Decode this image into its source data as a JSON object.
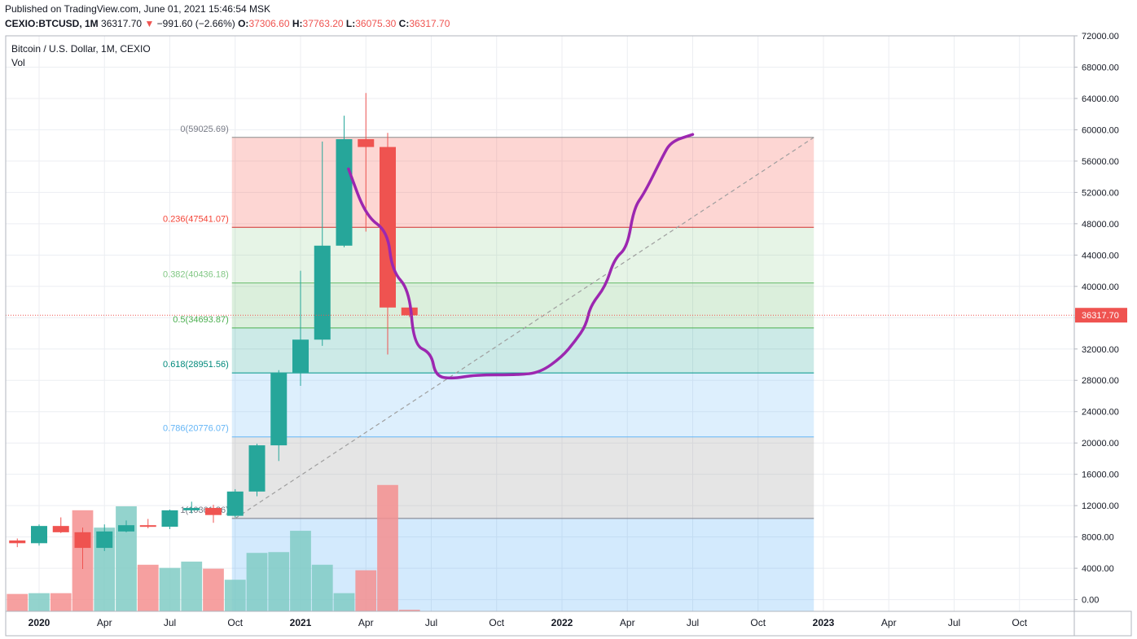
{
  "header": {
    "published": "Published on TradingView.com, June 01, 2021 15:46:54 MSK",
    "symbol": "CEXIO:BTCUSD, 1M",
    "last": "36317.70",
    "change_arrow": "▼",
    "change": "−991.60 (−2.66%)",
    "o_label": "O:",
    "o_value": "37306.60",
    "h_label": "H:",
    "h_value": "37763.20",
    "l_label": "L:",
    "l_value": "36075.30",
    "c_label": "C:",
    "c_value": "36317.70"
  },
  "legend": {
    "title": "Bitcoin / U.S. Dollar, 1M, CEXIO",
    "vol": "Vol"
  },
  "colors": {
    "up": "#26a69a",
    "down": "#ef5350",
    "vol_up": "#80cbc4",
    "vol_down": "#f48f8f",
    "projection": "#9c27b0",
    "price_line": "#ef5350"
  },
  "chart_data": {
    "type": "candlestick",
    "price_axis": {
      "ylim": [
        -1500,
        72000
      ],
      "ticks": [
        "72000.00",
        "68000.00",
        "64000.00",
        "60000.00",
        "56000.00",
        "52000.00",
        "48000.00",
        "44000.00",
        "40000.00",
        "36000.00",
        "32000.00",
        "28000.00",
        "24000.00",
        "20000.00",
        "16000.00",
        "12000.00",
        "8000.00",
        "4000.00",
        "0.00"
      ],
      "last_price_label": "36317.70",
      "last_price": 36317.7
    },
    "time_axis": {
      "labels": [
        {
          "month_index": 0,
          "label": "2020",
          "bold": true
        },
        {
          "month_index": 3,
          "label": "Apr"
        },
        {
          "month_index": 6,
          "label": "Jul"
        },
        {
          "month_index": 9,
          "label": "Oct"
        },
        {
          "month_index": 12,
          "label": "2021",
          "bold": true
        },
        {
          "month_index": 15,
          "label": "Apr"
        },
        {
          "month_index": 18,
          "label": "Jul"
        },
        {
          "month_index": 21,
          "label": "Oct"
        },
        {
          "month_index": 24,
          "label": "2022",
          "bold": true
        },
        {
          "month_index": 27,
          "label": "Apr"
        },
        {
          "month_index": 30,
          "label": "Jul"
        },
        {
          "month_index": 33,
          "label": "Oct"
        },
        {
          "month_index": 36,
          "label": "2023",
          "bold": true
        },
        {
          "month_index": 39,
          "label": "Apr"
        },
        {
          "month_index": 42,
          "label": "Jul"
        },
        {
          "month_index": 45,
          "label": "Oct"
        }
      ]
    },
    "candles": [
      {
        "month_index": -1,
        "o": 7550,
        "h": 7800,
        "l": 6700,
        "c": 7200,
        "vol": 2200
      },
      {
        "month_index": 0,
        "o": 7200,
        "h": 9600,
        "l": 6900,
        "c": 9400,
        "vol": 2300
      },
      {
        "month_index": 1,
        "o": 9400,
        "h": 10500,
        "l": 8500,
        "c": 8600,
        "vol": 2300
      },
      {
        "month_index": 2,
        "o": 8600,
        "h": 9200,
        "l": 3900,
        "c": 6600,
        "vol": 12800
      },
      {
        "month_index": 3,
        "o": 6600,
        "h": 9600,
        "l": 6200,
        "c": 8700,
        "vol": 10600
      },
      {
        "month_index": 4,
        "o": 8700,
        "h": 10100,
        "l": 8600,
        "c": 9500,
        "vol": 13300
      },
      {
        "month_index": 5,
        "o": 9500,
        "h": 10300,
        "l": 9100,
        "c": 9300,
        "vol": 5900
      },
      {
        "month_index": 6,
        "o": 9300,
        "h": 11500,
        "l": 9000,
        "c": 11400,
        "vol": 5500
      },
      {
        "month_index": 7,
        "o": 11400,
        "h": 12500,
        "l": 11000,
        "c": 11700,
        "vol": 6300
      },
      {
        "month_index": 8,
        "o": 11700,
        "h": 12100,
        "l": 9800,
        "c": 10800,
        "vol": 5400
      },
      {
        "month_index": 9,
        "o": 10700,
        "h": 14100,
        "l": 10500,
        "c": 13800,
        "vol": 4000
      },
      {
        "month_index": 10,
        "o": 13800,
        "h": 19900,
        "l": 13200,
        "c": 19700,
        "vol": 7400
      },
      {
        "month_index": 11,
        "o": 19700,
        "h": 29300,
        "l": 17700,
        "c": 29000,
        "vol": 7500
      },
      {
        "month_index": 12,
        "o": 29000,
        "h": 42000,
        "l": 27300,
        "c": 33200,
        "vol": 10200
      },
      {
        "month_index": 13,
        "o": 33200,
        "h": 58500,
        "l": 32400,
        "c": 45200,
        "vol": 5900
      },
      {
        "month_index": 14,
        "o": 45200,
        "h": 61800,
        "l": 45000,
        "c": 58800,
        "vol": 2300
      },
      {
        "month_index": 15,
        "o": 58800,
        "h": 64700,
        "l": 47000,
        "c": 57800,
        "vol": 5200
      },
      {
        "month_index": 16,
        "o": 57800,
        "h": 59600,
        "l": 31300,
        "c": 37300,
        "vol": 16000
      },
      {
        "month_index": 17,
        "o": 37300,
        "h": 37800,
        "l": 36100,
        "c": 36300,
        "vol": 200
      }
    ],
    "fibonacci": {
      "start_month": 9,
      "end_month": 35,
      "levels": [
        {
          "ratio": 0,
          "label": "0(59025.69)",
          "price": 59025.69,
          "line": "#8c8c8c",
          "fill": "rgba(244,67,54,0.22)",
          "text": "#787b86"
        },
        {
          "ratio": 0.236,
          "label": "0.236(47541.07)",
          "price": 47541.07,
          "line": "#d32f2f",
          "fill": "rgba(129,199,132,0.2)",
          "text": "#f44336"
        },
        {
          "ratio": 0.382,
          "label": "0.382(40436.18)",
          "price": 40436.18,
          "line": "#66bb6a",
          "fill": "rgba(76,175,80,0.2)",
          "text": "#81c784"
        },
        {
          "ratio": 0.5,
          "label": "0.5(34693.87)",
          "price": 34693.87,
          "line": "#4caf50",
          "fill": "rgba(0,150,136,0.2)",
          "text": "#4caf50"
        },
        {
          "ratio": 0.618,
          "label": "0.618(28951.56)",
          "price": 28951.56,
          "line": "#009688",
          "fill": "rgba(100,181,246,0.22)",
          "text": "#00897b"
        },
        {
          "ratio": 0.786,
          "label": "0.786(20776.07)",
          "price": 20776.07,
          "line": "#64b5f6",
          "fill": "rgba(150,150,150,0.25)",
          "text": "#64b5f6"
        },
        {
          "ratio": 1,
          "label": "1(10361.36)",
          "price": 10361.36,
          "line": "#787b86",
          "fill": "rgba(33,150,243,0.2)",
          "text": "#787b86"
        }
      ]
    },
    "trend_line": {
      "from_month": 9,
      "from_price": 10361,
      "to_month": 35,
      "to_price": 59025
    },
    "projection_path": [
      [
        14.2,
        55000
      ],
      [
        15.0,
        49000
      ],
      [
        16.0,
        47000
      ],
      [
        16.2,
        42000
      ],
      [
        17.0,
        39500
      ],
      [
        17.2,
        32500
      ],
      [
        18.0,
        31500
      ],
      [
        18.2,
        28500
      ],
      [
        19.0,
        28200
      ],
      [
        20.0,
        28700
      ],
      [
        22.0,
        28700
      ],
      [
        23.0,
        29000
      ],
      [
        24.0,
        31000
      ],
      [
        24.6,
        33000
      ],
      [
        25.1,
        35000
      ],
      [
        25.3,
        37500
      ],
      [
        26.0,
        40000
      ],
      [
        26.4,
        43500
      ],
      [
        27.0,
        45000
      ],
      [
        27.3,
        50000
      ],
      [
        27.8,
        52000
      ],
      [
        28.6,
        56500
      ],
      [
        29.0,
        58500
      ],
      [
        30.0,
        59400
      ]
    ]
  }
}
